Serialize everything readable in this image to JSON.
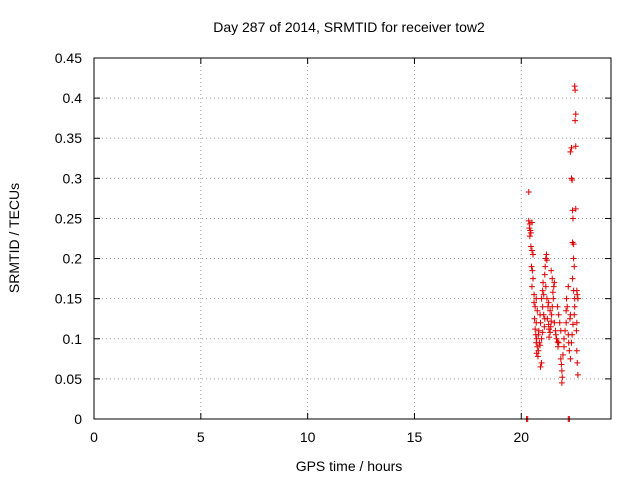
{
  "chart_data": {
    "type": "scatter",
    "title": "Day 287 of 2014, SRMTID for receiver tow2",
    "xlabel": "GPS time / hours",
    "ylabel": "SRMTID / TECUs",
    "xlim": [
      0,
      24.2
    ],
    "ylim": [
      0,
      0.45
    ],
    "xticks": [
      {
        "value": 0,
        "label": "0"
      },
      {
        "value": 5,
        "label": "5"
      },
      {
        "value": 10,
        "label": "10"
      },
      {
        "value": 15,
        "label": "15"
      },
      {
        "value": 20,
        "label": "20"
      }
    ],
    "yticks": [
      {
        "value": 0,
        "label": "0"
      },
      {
        "value": 0.05,
        "label": "0.05"
      },
      {
        "value": 0.1,
        "label": "0.1"
      },
      {
        "value": 0.15,
        "label": "0.15"
      },
      {
        "value": 0.2,
        "label": "0.2"
      },
      {
        "value": 0.25,
        "label": "0.25"
      },
      {
        "value": 0.3,
        "label": "0.3"
      },
      {
        "value": 0.35,
        "label": "0.35"
      },
      {
        "value": 0.4,
        "label": "0.4"
      },
      {
        "value": 0.45,
        "label": "0.45"
      }
    ],
    "grid": true,
    "marker": "+",
    "color": "#dd0000",
    "series": [
      {
        "name": "SRMTID",
        "points": [
          [
            20.25,
            0.0
          ],
          [
            20.3,
            0.0
          ],
          [
            22.2,
            0.0
          ],
          [
            22.25,
            0.0
          ],
          [
            20.35,
            0.283
          ],
          [
            20.35,
            0.247
          ],
          [
            20.4,
            0.243
          ],
          [
            20.38,
            0.238
          ],
          [
            20.42,
            0.235
          ],
          [
            20.45,
            0.232
          ],
          [
            20.5,
            0.245
          ],
          [
            20.4,
            0.228
          ],
          [
            20.45,
            0.215
          ],
          [
            20.5,
            0.21
          ],
          [
            20.55,
            0.205
          ],
          [
            20.48,
            0.19
          ],
          [
            20.52,
            0.185
          ],
          [
            20.55,
            0.175
          ],
          [
            20.5,
            0.165
          ],
          [
            20.6,
            0.155
          ],
          [
            20.6,
            0.145
          ],
          [
            20.65,
            0.14
          ],
          [
            20.62,
            0.125
          ],
          [
            20.7,
            0.12
          ],
          [
            20.65,
            0.112
          ],
          [
            20.68,
            0.105
          ],
          [
            20.72,
            0.1
          ],
          [
            20.7,
            0.095
          ],
          [
            20.75,
            0.09
          ],
          [
            20.72,
            0.082
          ],
          [
            20.78,
            0.078
          ],
          [
            20.8,
            0.085
          ],
          [
            20.85,
            0.095
          ],
          [
            20.82,
            0.11
          ],
          [
            20.9,
            0.12
          ],
          [
            20.88,
            0.13
          ],
          [
            20.9,
            0.065
          ],
          [
            20.95,
            0.07
          ],
          [
            20.95,
            0.15
          ],
          [
            21.0,
            0.16
          ],
          [
            21.02,
            0.17
          ],
          [
            21.05,
            0.155
          ],
          [
            21.0,
            0.14
          ],
          [
            21.05,
            0.13
          ],
          [
            21.1,
            0.18
          ],
          [
            21.12,
            0.19
          ],
          [
            21.15,
            0.2
          ],
          [
            21.18,
            0.205
          ],
          [
            21.2,
            0.198
          ],
          [
            21.15,
            0.165
          ],
          [
            21.2,
            0.15
          ],
          [
            21.25,
            0.14
          ],
          [
            21.22,
            0.125
          ],
          [
            21.28,
            0.118
          ],
          [
            21.3,
            0.112
          ],
          [
            21.35,
            0.108
          ],
          [
            21.3,
            0.102
          ],
          [
            21.38,
            0.115
          ],
          [
            21.4,
            0.122
          ],
          [
            21.42,
            0.13
          ],
          [
            21.45,
            0.14
          ],
          [
            21.5,
            0.15
          ],
          [
            21.48,
            0.158
          ],
          [
            21.52,
            0.165
          ],
          [
            21.55,
            0.17
          ],
          [
            21.4,
            0.185
          ],
          [
            21.45,
            0.175
          ],
          [
            21.55,
            0.12
          ],
          [
            21.6,
            0.11
          ],
          [
            21.62,
            0.105
          ],
          [
            21.65,
            0.1
          ],
          [
            21.7,
            0.096
          ],
          [
            21.72,
            0.09
          ],
          [
            21.75,
            0.095
          ],
          [
            21.7,
            0.14
          ],
          [
            21.75,
            0.13
          ],
          [
            21.8,
            0.12
          ],
          [
            21.85,
            0.11
          ],
          [
            21.85,
            0.075
          ],
          [
            21.88,
            0.068
          ],
          [
            21.9,
            0.06
          ],
          [
            21.92,
            0.052
          ],
          [
            21.9,
            0.045
          ],
          [
            21.95,
            0.08
          ],
          [
            22.0,
            0.09
          ],
          [
            22.0,
            0.1
          ],
          [
            22.05,
            0.11
          ],
          [
            22.1,
            0.12
          ],
          [
            22.1,
            0.135
          ],
          [
            22.15,
            0.14
          ],
          [
            22.12,
            0.15
          ],
          [
            22.2,
            0.165
          ],
          [
            22.2,
            0.105
          ],
          [
            22.22,
            0.095
          ],
          [
            22.25,
            0.085
          ],
          [
            22.28,
            0.125
          ],
          [
            22.3,
            0.13
          ],
          [
            22.3,
            0.333
          ],
          [
            22.35,
            0.338
          ],
          [
            22.35,
            0.3
          ],
          [
            22.38,
            0.298
          ],
          [
            22.4,
            0.26
          ],
          [
            22.42,
            0.25
          ],
          [
            22.4,
            0.22
          ],
          [
            22.45,
            0.218
          ],
          [
            22.45,
            0.2
          ],
          [
            22.48,
            0.19
          ],
          [
            22.4,
            0.175
          ],
          [
            22.45,
            0.16
          ],
          [
            22.5,
            0.15
          ],
          [
            22.5,
            0.415
          ],
          [
            22.52,
            0.41
          ],
          [
            22.55,
            0.38
          ],
          [
            22.52,
            0.372
          ],
          [
            22.55,
            0.34
          ],
          [
            22.55,
            0.262
          ],
          [
            22.6,
            0.16
          ],
          [
            22.62,
            0.155
          ],
          [
            22.65,
            0.15
          ],
          [
            22.6,
            0.12
          ],
          [
            22.58,
            0.11
          ],
          [
            22.6,
            0.085
          ],
          [
            22.62,
            0.07
          ],
          [
            22.65,
            0.055
          ],
          [
            22.5,
            0.14
          ],
          [
            22.48,
            0.13
          ],
          [
            22.42,
            0.118
          ],
          [
            22.38,
            0.105
          ],
          [
            22.35,
            0.095
          ],
          [
            22.3,
            0.075
          ],
          [
            21.35,
            0.135
          ],
          [
            21.28,
            0.145
          ],
          [
            21.1,
            0.125
          ],
          [
            21.08,
            0.115
          ],
          [
            21.0,
            0.108
          ],
          [
            20.95,
            0.1
          ],
          [
            20.88,
            0.092
          ],
          [
            20.8,
            0.105
          ],
          [
            20.75,
            0.135
          ],
          [
            20.7,
            0.15
          ]
        ]
      }
    ]
  }
}
